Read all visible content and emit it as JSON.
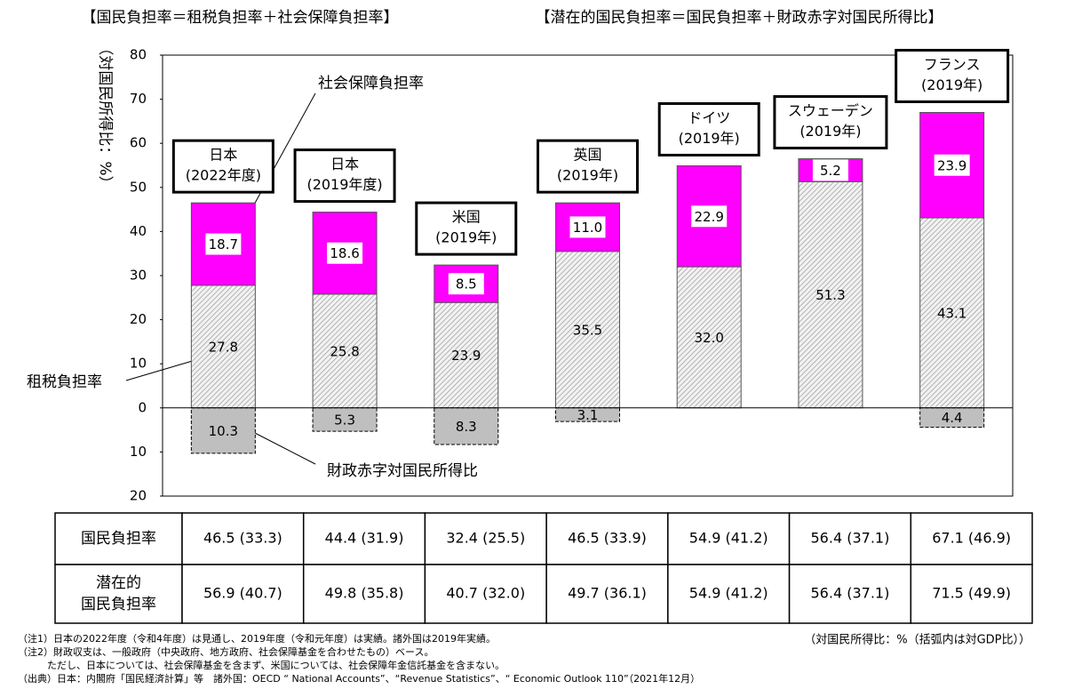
{
  "chart_data": {
    "type": "stacked-bar",
    "titles": [
      "【国民負担率＝租税負担率＋社会保障負担率】",
      "【潜在的国民負担率＝国民負担率＋財政赤字対国民所得比】"
    ],
    "y_label": "（対国民所得比：%）",
    "categories": [
      [
        "日本",
        "(2022年度)"
      ],
      [
        "日本",
        "(2019年度)"
      ],
      [
        "米国",
        "(2019年)"
      ],
      [
        "英国",
        "(2019年)"
      ],
      [
        "ドイツ",
        "(2019年)"
      ],
      [
        "スウェーデン",
        "(2019年)"
      ],
      [
        "フランス",
        "(2019年)"
      ]
    ],
    "series": [
      {
        "name": "租税負担率",
        "color": "#d9d9d9",
        "values": [
          27.8,
          25.8,
          23.9,
          35.5,
          32.0,
          51.3,
          43.1
        ],
        "value_labels": [
          "27.8",
          "25.8",
          "23.9",
          "35.5",
          "32.0",
          "51.3",
          "43.1"
        ]
      },
      {
        "name": "社会保障負担率",
        "color": "#ff00ff",
        "values": [
          18.7,
          18.6,
          8.5,
          11.0,
          22.9,
          5.2,
          23.9
        ],
        "value_labels": [
          "18.7",
          "18.6",
          "8.5",
          "11.0",
          "22.9",
          "5.2",
          "23.9"
        ]
      },
      {
        "name": "財政赤字対国民所得比",
        "color": "#bfbfbf",
        "values": [
          -10.3,
          -5.3,
          -8.3,
          -3.1,
          null,
          null,
          -4.4
        ],
        "value_labels": [
          "10.3",
          "5.3",
          "8.3",
          "3.1",
          null,
          null,
          "4.4"
        ]
      }
    ],
    "ylim": [
      -20,
      80
    ],
    "yticks": [
      {
        "value": -20,
        "label": "20"
      },
      {
        "value": -10,
        "label": "10"
      },
      0,
      10,
      20,
      30,
      40,
      50,
      60,
      70,
      80
    ]
  },
  "table": {
    "rows": [
      {
        "label": [
          "国民負担率"
        ],
        "cells": [
          "46.5 (33.3)",
          "44.4 (31.9)",
          "32.4 (25.5)",
          "46.5 (33.9)",
          "54.9 (41.2)",
          "56.4 (37.1)",
          "67.1 (46.9)"
        ]
      },
      {
        "label": [
          "潜在的",
          "国民負担率"
        ],
        "cells": [
          "56.9 (40.7)",
          "49.8 (35.8)",
          "40.7 (32.0)",
          "49.7 (36.1)",
          "54.9 (41.2)",
          "56.4 (37.1)",
          "71.5 (49.9)"
        ]
      }
    ]
  },
  "unit_note": "（対国民所得比：%（括弧内は対GDP比））",
  "notes": [
    "（注1）日本の2022年度（令和4年度）は見通し、2019年度（令和元年度）は実績。諸外国は2019年実績。",
    "（注2）財政収支は、一般政府（中央政府、地方政府、社会保障基金を合わせたもの）ベース。",
    "　　　ただし、日本については、社会保障基金を含まず、米国については、社会保障年金信託基金を含まない。",
    "（出典）日本：内閣府「国民経済計算」等　諸外国：OECD “ National Accounts”、“Revenue Statistics”、“ Economic Outlook 110”（2021年12月）"
  ]
}
